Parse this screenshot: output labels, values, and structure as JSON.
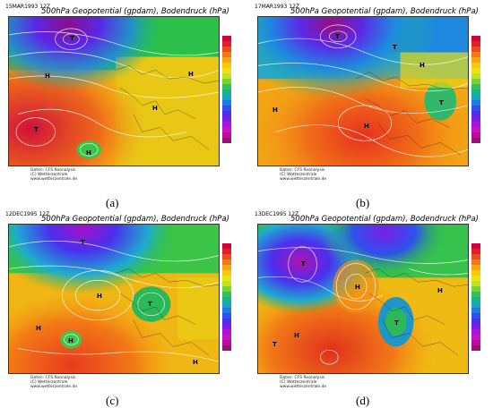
{
  "colors": {
    "legend": [
      "#d0003a",
      "#e0202a",
      "#ec4a20",
      "#f27a16",
      "#f8a412",
      "#f7c810",
      "#f0e212",
      "#c4e01e",
      "#7dd232",
      "#34c24e",
      "#18b48a",
      "#14a6c0",
      "#1e7ee0",
      "#2c52ec",
      "#4a30ee",
      "#7a1ee6",
      "#a814d8",
      "#c412c4",
      "#be0a9c",
      "#981070"
    ]
  },
  "panels": [
    {
      "id": "a",
      "stamp": "15MAR1993 12Z",
      "title": "500hPa Geopotential (gpdam), Bodendruck (hPa)",
      "credit_lines": [
        "Daten: CFS Reanalysis",
        "(C) Wetterzentrale",
        "www.wetterzentrale.de"
      ],
      "caption": "(a)",
      "pressure_labels": [
        "T",
        "H",
        "H",
        "H",
        "T",
        "H"
      ]
    },
    {
      "id": "b",
      "stamp": "17MAR1993 12Z",
      "title": "500hPa Geopotential (gpdam), Bodendruck (hPa)",
      "credit_lines": [
        "Daten: CFS Reanalysis",
        "(C) Wetterzentrale",
        "www.wetterzentrale.de"
      ],
      "caption": "(b)",
      "pressure_labels": [
        "T",
        "H",
        "H",
        "T",
        "H",
        "T"
      ]
    },
    {
      "id": "c",
      "stamp": "12DEC1995 12Z",
      "title": "500hPa Geopotential (gpdam), Bodendruck (hPa)",
      "credit_lines": [
        "Daten: CFS Reanalysis",
        "(C) Wetterzentrale",
        "www.wetterzentrale.de"
      ],
      "caption": "(c)",
      "pressure_labels": [
        "T",
        "H",
        "H",
        "H",
        "T",
        "H"
      ]
    },
    {
      "id": "d",
      "stamp": "13DEC1995 12Z",
      "title": "500hPa Geopotential (gpdam), Bodendruck (hPa)",
      "credit_lines": [
        "Daten: CFS Reanalysis",
        "(C) Wetterzentrale",
        "www.wetterzentrale.de"
      ],
      "caption": "(d)",
      "pressure_labels": [
        "T",
        "H",
        "H",
        "T",
        "H",
        "T"
      ]
    }
  ]
}
